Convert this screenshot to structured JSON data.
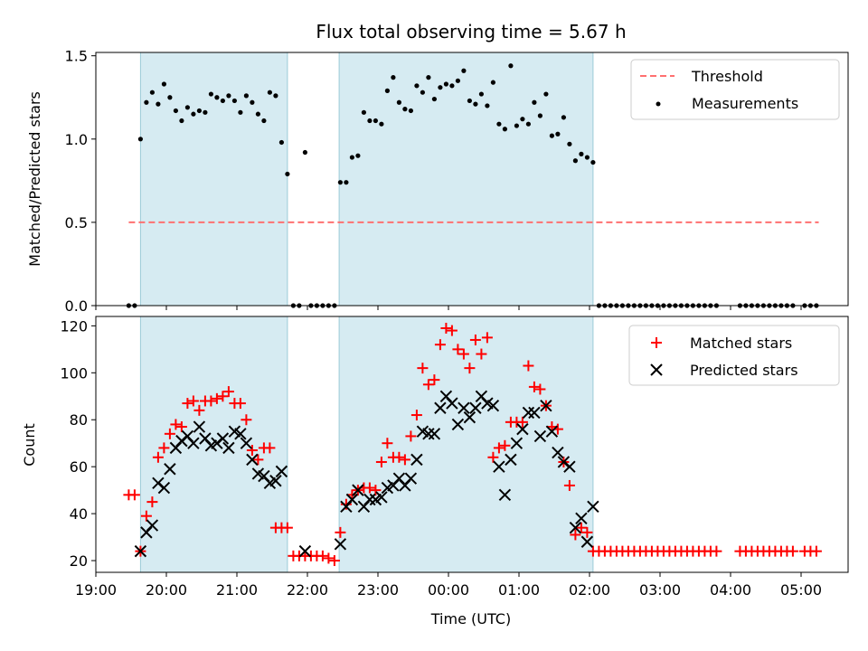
{
  "chart_data": [
    {
      "type": "scatter",
      "title": "Flux total observing time = 5.67 h",
      "ylabel": "Matched/Predicted stars",
      "ylim": [
        0,
        1.52
      ],
      "yticks": [
        0.0,
        0.5,
        1.0,
        1.5
      ],
      "ytick_labels": [
        "0.0",
        "0.5",
        "1.0",
        "1.5"
      ],
      "x_range": [
        "19:00",
        "05:40"
      ],
      "shaded_regions": [
        [
          "19:38",
          "21:43"
        ],
        [
          "22:27",
          "02:03"
        ]
      ],
      "threshold": {
        "label": "Threshold",
        "value": 0.5,
        "x_start": "19:28",
        "x_end": "05:15",
        "color": "#ff7070"
      },
      "legend": [
        "Threshold",
        "Measurements"
      ],
      "legend_position": "upper right",
      "series": [
        {
          "name": "Measurements",
          "color": "#000000",
          "marker": "dot",
          "x": [
            "19:28",
            "19:33",
            "19:38",
            "19:43",
            "19:48",
            "19:53",
            "19:58",
            "20:03",
            "20:08",
            "20:13",
            "20:18",
            "20:23",
            "20:28",
            "20:33",
            "20:38",
            "20:43",
            "20:48",
            "20:53",
            "20:58",
            "21:03",
            "21:08",
            "21:13",
            "21:18",
            "21:23",
            "21:28",
            "21:33",
            "21:38",
            "21:43",
            "21:48",
            "21:53",
            "21:58",
            "22:03",
            "22:08",
            "22:13",
            "22:18",
            "22:23",
            "22:28",
            "22:33",
            "22:38",
            "22:43",
            "22:48",
            "22:53",
            "22:58",
            "23:03",
            "23:08",
            "23:13",
            "23:18",
            "23:23",
            "23:28",
            "23:33",
            "23:38",
            "23:43",
            "23:48",
            "23:53",
            "23:58",
            "00:03",
            "00:08",
            "00:13",
            "00:18",
            "00:23",
            "00:28",
            "00:33",
            "00:38",
            "00:43",
            "00:48",
            "00:53",
            "00:58",
            "01:03",
            "01:08",
            "01:13",
            "01:18",
            "01:23",
            "01:28",
            "01:33",
            "01:38",
            "01:43",
            "01:48",
            "01:53",
            "01:58",
            "02:03",
            "02:08",
            "02:13",
            "02:18",
            "02:23",
            "02:28",
            "02:33",
            "02:38",
            "02:43",
            "02:48",
            "02:53",
            "02:58",
            "03:03",
            "03:08",
            "03:13",
            "03:18",
            "03:23",
            "03:28",
            "03:33",
            "03:38",
            "03:43",
            "03:48",
            "04:08",
            "04:13",
            "04:18",
            "04:23",
            "04:28",
            "04:33",
            "04:38",
            "04:43",
            "04:48",
            "04:53",
            "05:03",
            "05:08",
            "05:13"
          ],
          "y": [
            0,
            0,
            1.0,
            1.22,
            1.28,
            1.21,
            1.33,
            1.25,
            1.17,
            1.11,
            1.19,
            1.15,
            1.17,
            1.16,
            1.27,
            1.25,
            1.23,
            1.26,
            1.23,
            1.16,
            1.26,
            1.22,
            1.15,
            1.11,
            1.28,
            1.26,
            0.98,
            0.79,
            0,
            0,
            0.92,
            0,
            0,
            0,
            0,
            0,
            0.74,
            0.74,
            0.89,
            0.9,
            1.16,
            1.11,
            1.11,
            1.09,
            1.29,
            1.37,
            1.22,
            1.18,
            1.17,
            1.32,
            1.28,
            1.37,
            1.24,
            1.31,
            1.33,
            1.32,
            1.35,
            1.41,
            1.23,
            1.21,
            1.27,
            1.2,
            1.34,
            1.09,
            1.06,
            1.44,
            1.08,
            1.12,
            1.09,
            1.22,
            1.14,
            1.27,
            1.02,
            1.03,
            1.13,
            0.97,
            0.87,
            0.91,
            0.89,
            0.86,
            0,
            0,
            0,
            0,
            0,
            0,
            0,
            0,
            0,
            0,
            0,
            0,
            0,
            0,
            0,
            0,
            0,
            0,
            0,
            0,
            0,
            0,
            0,
            0,
            0,
            0,
            0,
            0,
            0,
            0,
            0,
            0,
            0,
            0
          ]
        }
      ]
    },
    {
      "type": "scatter",
      "xlabel": "Time (UTC)",
      "ylabel": "Count",
      "ylim": [
        15,
        124
      ],
      "yticks": [
        20,
        40,
        60,
        80,
        100,
        120
      ],
      "ytick_labels": [
        "20",
        "40",
        "60",
        "80",
        "100",
        "120"
      ],
      "x_range": [
        "19:00",
        "05:40"
      ],
      "xtick_labels": [
        "19:00",
        "20:00",
        "21:00",
        "22:00",
        "23:00",
        "00:00",
        "01:00",
        "02:00",
        "03:00",
        "04:00",
        "05:00"
      ],
      "shaded_regions": [
        [
          "19:38",
          "21:43"
        ],
        [
          "22:27",
          "02:03"
        ]
      ],
      "legend": [
        "Matched stars",
        "Predicted stars"
      ],
      "legend_position": "upper right",
      "series": [
        {
          "name": "Matched stars",
          "color": "#ff0000",
          "marker": "plus",
          "x": [
            "19:28",
            "19:33",
            "19:38",
            "19:43",
            "19:48",
            "19:53",
            "19:58",
            "20:03",
            "20:08",
            "20:13",
            "20:18",
            "20:23",
            "20:28",
            "20:33",
            "20:38",
            "20:43",
            "20:48",
            "20:53",
            "20:58",
            "21:03",
            "21:08",
            "21:13",
            "21:18",
            "21:23",
            "21:28",
            "21:33",
            "21:38",
            "21:43",
            "21:48",
            "21:53",
            "21:58",
            "22:03",
            "22:08",
            "22:13",
            "22:18",
            "22:23",
            "22:28",
            "22:33",
            "22:38",
            "22:43",
            "22:48",
            "22:53",
            "22:58",
            "23:03",
            "23:08",
            "23:13",
            "23:18",
            "23:23",
            "23:28",
            "23:33",
            "23:38",
            "23:43",
            "23:48",
            "23:53",
            "23:58",
            "00:03",
            "00:08",
            "00:13",
            "00:18",
            "00:23",
            "00:28",
            "00:33",
            "00:38",
            "00:43",
            "00:48",
            "00:53",
            "00:58",
            "01:03",
            "01:08",
            "01:13",
            "01:18",
            "01:23",
            "01:28",
            "01:33",
            "01:38",
            "01:43",
            "01:48",
            "01:53",
            "01:58",
            "02:03",
            "02:08",
            "02:13",
            "02:18",
            "02:23",
            "02:28",
            "02:33",
            "02:38",
            "02:43",
            "02:48",
            "02:53",
            "02:58",
            "03:03",
            "03:08",
            "03:13",
            "03:18",
            "03:23",
            "03:28",
            "03:33",
            "03:38",
            "03:43",
            "03:48",
            "04:08",
            "04:13",
            "04:18",
            "04:23",
            "04:28",
            "04:33",
            "04:38",
            "04:43",
            "04:48",
            "04:53",
            "05:03",
            "05:08",
            "05:13"
          ],
          "y": [
            48,
            48,
            24,
            39,
            45,
            64,
            68,
            74,
            78,
            77,
            87,
            88,
            84,
            88,
            88,
            89,
            90,
            92,
            87,
            87,
            80,
            67,
            63,
            68,
            68,
            34,
            34,
            34,
            22,
            22,
            22,
            22,
            22,
            22,
            21,
            20,
            32,
            44,
            48,
            50,
            51,
            51,
            50,
            62,
            70,
            64,
            64,
            63,
            73,
            82,
            102,
            95,
            97,
            112,
            119,
            118,
            110,
            108,
            102,
            114,
            108,
            115,
            64,
            68,
            69,
            79,
            79,
            79,
            103,
            94,
            93,
            86,
            77,
            76,
            62,
            52,
            31,
            34,
            32,
            24,
            24,
            24,
            24,
            24,
            24,
            24,
            24,
            24,
            24,
            24,
            24,
            24,
            24,
            24,
            24,
            24,
            24,
            24,
            24,
            24,
            24,
            24,
            24,
            24,
            24,
            24,
            24,
            24,
            24,
            24,
            24,
            24,
            24,
            24
          ]
        },
        {
          "name": "Predicted stars",
          "color": "#000000",
          "marker": "x",
          "x": [
            "19:38",
            "19:43",
            "19:48",
            "19:53",
            "19:58",
            "20:03",
            "20:08",
            "20:13",
            "20:18",
            "20:23",
            "20:28",
            "20:33",
            "20:38",
            "20:43",
            "20:48",
            "20:53",
            "20:58",
            "21:03",
            "21:08",
            "21:13",
            "21:18",
            "21:23",
            "21:28",
            "21:33",
            "21:38",
            "21:58",
            "22:28",
            "22:33",
            "22:38",
            "22:43",
            "22:48",
            "22:53",
            "22:58",
            "23:03",
            "23:08",
            "23:13",
            "23:18",
            "23:23",
            "23:28",
            "23:33",
            "23:38",
            "23:43",
            "23:48",
            "23:53",
            "23:58",
            "00:03",
            "00:08",
            "00:13",
            "00:18",
            "00:23",
            "00:28",
            "00:33",
            "00:38",
            "00:43",
            "00:48",
            "00:53",
            "00:58",
            "01:03",
            "01:08",
            "01:13",
            "01:18",
            "01:23",
            "01:28",
            "01:33",
            "01:38",
            "01:43",
            "01:48",
            "01:53",
            "01:58",
            "02:03"
          ],
          "y": [
            24,
            32,
            35,
            53,
            51,
            59,
            68,
            71,
            73,
            70,
            77,
            72,
            69,
            70,
            72,
            68,
            75,
            74,
            70,
            63,
            57,
            56,
            53,
            54,
            58,
            24,
            27,
            43,
            46,
            50,
            43,
            46,
            46,
            47,
            51,
            52,
            55,
            52,
            55,
            63,
            75,
            74,
            74,
            85,
            90,
            87,
            78,
            85,
            81,
            85,
            90,
            87,
            86,
            60,
            48,
            63,
            70,
            76,
            83,
            83,
            73,
            86,
            75,
            66,
            62,
            60,
            34,
            38,
            28,
            43
          ]
        }
      ]
    }
  ]
}
